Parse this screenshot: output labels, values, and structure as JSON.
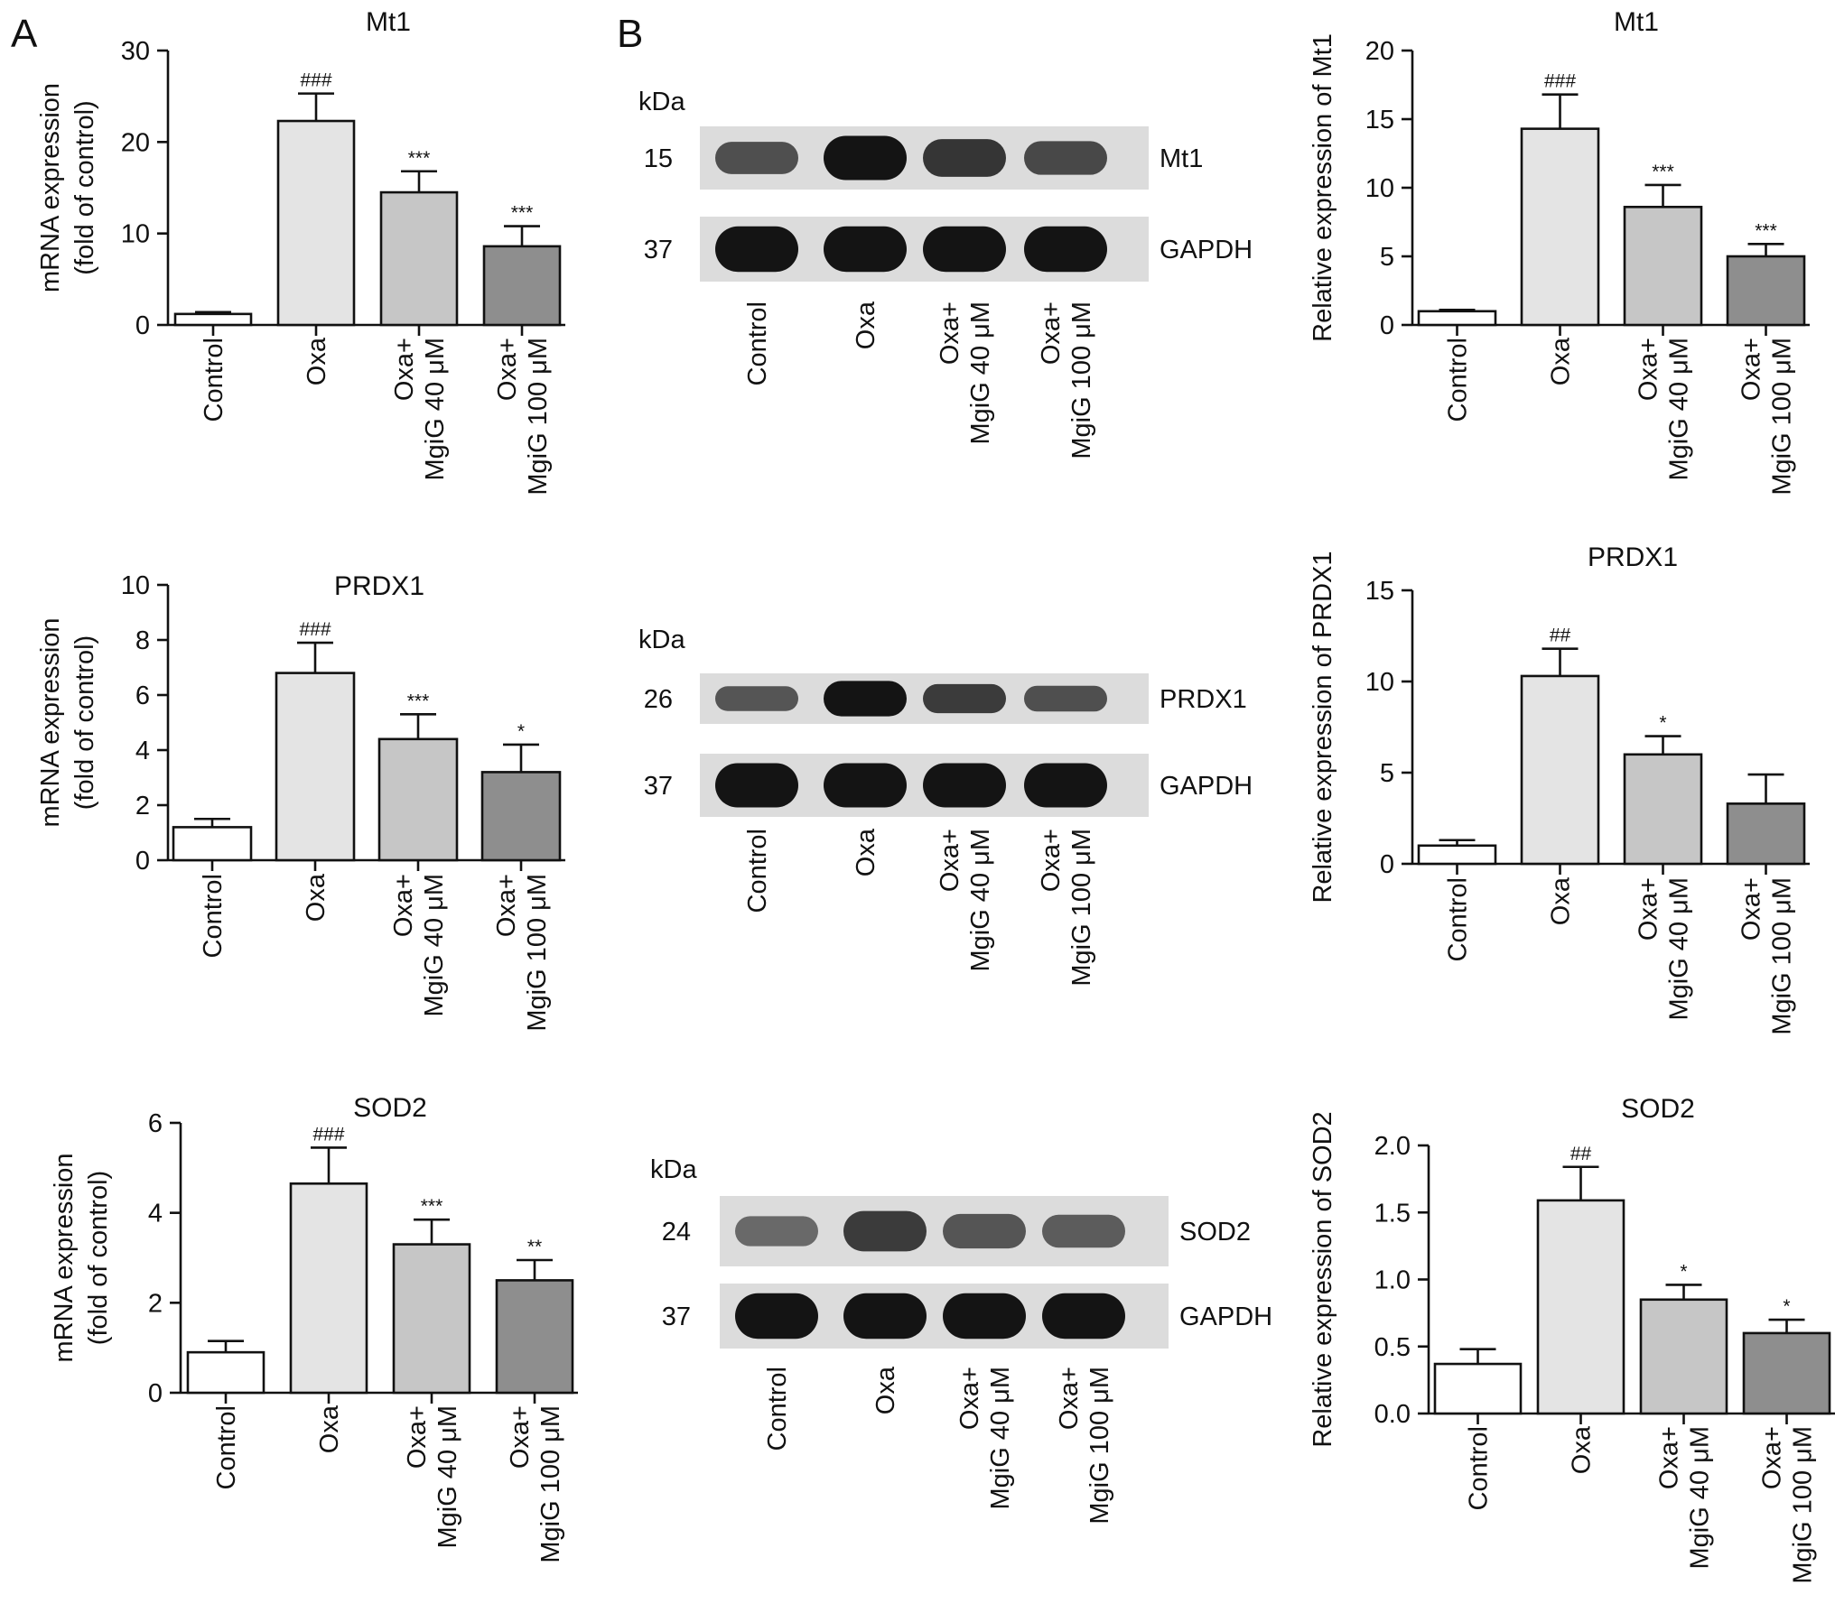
{
  "panel_letters": [
    "A",
    "B"
  ],
  "blot_units": "kDa",
  "categories": [
    "Control",
    "Oxa",
    "Oxa+|MgiG 40 μM",
    "Oxa+|MgiG 100 μM"
  ],
  "bar_colors": [
    "#ffffff",
    "#e4e4e4",
    "#c6c6c6",
    "#8e8e8e"
  ],
  "blots": [
    {
      "rows": [
        {
          "kda": "15",
          "protein": "Mt1",
          "intensity": [
            0.55,
            1.0,
            0.75,
            0.6
          ]
        },
        {
          "kda": "37",
          "protein": "GAPDH",
          "intensity": [
            1.0,
            1.0,
            1.0,
            1.0
          ]
        }
      ]
    },
    {
      "rows": [
        {
          "kda": "26",
          "protein": "PRDX1",
          "intensity": [
            0.5,
            1.0,
            0.7,
            0.55
          ]
        },
        {
          "kda": "37",
          "protein": "GAPDH",
          "intensity": [
            1.0,
            1.0,
            1.0,
            1.0
          ]
        }
      ]
    },
    {
      "rows": [
        {
          "kda": "24",
          "protein": "SOD2",
          "intensity": [
            0.35,
            0.7,
            0.5,
            0.45
          ]
        },
        {
          "kda": "37",
          "protein": "GAPDH",
          "intensity": [
            1.0,
            1.0,
            1.0,
            1.0
          ]
        }
      ]
    }
  ],
  "chart_data": [
    {
      "type": "bar",
      "title": "Mt1",
      "ylabel": "mRNA expression|(fold of control)",
      "ylim": [
        0,
        30
      ],
      "yticks": [
        0,
        10,
        20,
        30
      ],
      "yticklabels": [
        "0",
        "10",
        "20",
        "30"
      ],
      "categories": [
        "Control",
        "Oxa",
        "Oxa+ MgiG 40 μM",
        "Oxa+ MgiG 100 μM"
      ],
      "values": [
        1.2,
        22.3,
        14.5,
        8.6
      ],
      "errors": [
        0.2,
        3.0,
        2.3,
        2.2
      ],
      "annotations": [
        "",
        "###",
        "***",
        "***"
      ]
    },
    {
      "type": "bar",
      "title": "PRDX1",
      "ylabel": "mRNA expression|(fold of control)",
      "ylim": [
        0,
        10
      ],
      "yticks": [
        0,
        2,
        4,
        6,
        8,
        10
      ],
      "yticklabels": [
        "0",
        "2",
        "4",
        "6",
        "8",
        "10"
      ],
      "categories": [
        "Control",
        "Oxa",
        "Oxa+ MgiG 40 μM",
        "Oxa+ MgiG 100 μM"
      ],
      "values": [
        1.2,
        6.8,
        4.4,
        3.2
      ],
      "errors": [
        0.3,
        1.1,
        0.9,
        1.0
      ],
      "annotations": [
        "",
        "###",
        "***",
        "*"
      ]
    },
    {
      "type": "bar",
      "title": "SOD2",
      "ylabel": "mRNA expression|(fold of control)",
      "ylim": [
        0,
        6
      ],
      "yticks": [
        0,
        2,
        4,
        6
      ],
      "yticklabels": [
        "0",
        "2",
        "4",
        "6"
      ],
      "categories": [
        "Control",
        "Oxa",
        "Oxa+ MgiG 40 μM",
        "Oxa+ MgiG 100 μM"
      ],
      "values": [
        0.9,
        4.65,
        3.3,
        2.5
      ],
      "errors": [
        0.25,
        0.8,
        0.55,
        0.45
      ],
      "annotations": [
        "",
        "###",
        "***",
        "**"
      ]
    },
    {
      "type": "bar",
      "title": "Mt1",
      "ylabel": "Relative expression of Mt1",
      "ylim": [
        0,
        20
      ],
      "yticks": [
        0,
        5,
        10,
        15,
        20
      ],
      "yticklabels": [
        "0",
        "5",
        "10",
        "15",
        "20"
      ],
      "categories": [
        "Control",
        "Oxa",
        "Oxa+ MgiG 40 μM",
        "Oxa+ MgiG 100 μM"
      ],
      "values": [
        1.0,
        14.3,
        8.6,
        5.0
      ],
      "errors": [
        0.1,
        2.5,
        1.6,
        0.9
      ],
      "annotations": [
        "",
        "###",
        "***",
        "***"
      ]
    },
    {
      "type": "bar",
      "title": "PRDX1",
      "ylabel": "Relative expression of PRDX1",
      "ylim": [
        0,
        15
      ],
      "yticks": [
        0,
        5,
        10,
        15
      ],
      "yticklabels": [
        "0",
        "5",
        "10",
        "15"
      ],
      "categories": [
        "Control",
        "Oxa",
        "Oxa+ MgiG 40 μM",
        "Oxa+ MgiG 100 μM"
      ],
      "values": [
        1.0,
        10.3,
        6.0,
        3.3
      ],
      "errors": [
        0.3,
        1.5,
        1.0,
        1.6
      ],
      "annotations": [
        "",
        "##",
        "*",
        ""
      ]
    },
    {
      "type": "bar",
      "title": "SOD2",
      "ylabel": "Relative expression of SOD2",
      "ylim": [
        0,
        2.0
      ],
      "yticks": [
        0,
        0.5,
        1.0,
        1.5,
        2.0
      ],
      "yticklabels": [
        "0.0",
        "0.5",
        "1.0",
        "1.5",
        "2.0"
      ],
      "categories": [
        "Control",
        "Oxa",
        "Oxa+ MgiG 40 μM",
        "Oxa+ MgiG 100 μM"
      ],
      "values": [
        0.37,
        1.59,
        0.85,
        0.6
      ],
      "errors": [
        0.11,
        0.25,
        0.11,
        0.1
      ],
      "annotations": [
        "",
        "##",
        "*",
        "*"
      ]
    }
  ]
}
